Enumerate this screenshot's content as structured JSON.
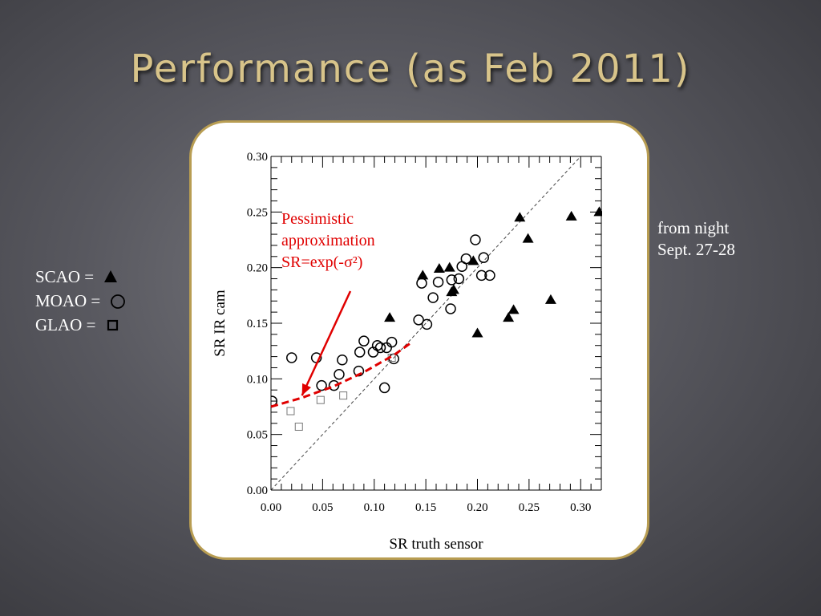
{
  "title": "Performance (as Feb 2011)",
  "side_note": {
    "line1": "from night",
    "line2": "Sept. 27-28"
  },
  "legend": {
    "scao": "SCAO = ",
    "moao": "MOAO = ",
    "glao": "GLAO = "
  },
  "colors": {
    "title": "#d8c48a",
    "annotation": "#e00000",
    "panel_border": "#b89d52"
  },
  "chart_data": {
    "type": "scatter",
    "xlabel": "SR truth sensor",
    "ylabel": "SR IR cam",
    "xlim": [
      0,
      0.32
    ],
    "ylim": [
      0,
      0.3
    ],
    "x_ticks": [
      "0.00",
      "0.05",
      "0.10",
      "0.15",
      "0.20",
      "0.25",
      "0.30"
    ],
    "y_ticks": [
      "0.00",
      "0.05",
      "0.10",
      "0.15",
      "0.20",
      "0.25",
      "0.30"
    ],
    "grid": false,
    "reference_line": "y = x",
    "annotation": {
      "lines": [
        "Pessimistic",
        "approximation",
        "SR=exp(-σ²)"
      ]
    },
    "approximation_curve": {
      "x": [
        0.0,
        0.03,
        0.06,
        0.09,
        0.12,
        0.135
      ],
      "y": [
        0.075,
        0.083,
        0.093,
        0.106,
        0.122,
        0.132
      ]
    },
    "series": [
      {
        "name": "SCAO",
        "marker": "triangle",
        "x": [
          0.115,
          0.147,
          0.163,
          0.173,
          0.175,
          0.177,
          0.196,
          0.2,
          0.23,
          0.235,
          0.241,
          0.249,
          0.271,
          0.291,
          0.318
        ],
        "y": [
          0.155,
          0.193,
          0.199,
          0.2,
          0.178,
          0.18,
          0.206,
          0.141,
          0.155,
          0.162,
          0.245,
          0.226,
          0.171,
          0.246,
          0.25
        ]
      },
      {
        "name": "MOAO",
        "marker": "circle",
        "x": [
          0.001,
          0.02,
          0.044,
          0.049,
          0.061,
          0.066,
          0.069,
          0.085,
          0.086,
          0.09,
          0.099,
          0.103,
          0.106,
          0.11,
          0.112,
          0.117,
          0.119,
          0.143,
          0.146,
          0.151,
          0.157,
          0.162,
          0.174,
          0.175,
          0.182,
          0.185,
          0.189,
          0.198,
          0.204,
          0.206,
          0.212
        ],
        "y": [
          0.08,
          0.119,
          0.119,
          0.094,
          0.094,
          0.104,
          0.117,
          0.107,
          0.124,
          0.134,
          0.124,
          0.13,
          0.128,
          0.092,
          0.128,
          0.133,
          0.118,
          0.153,
          0.186,
          0.149,
          0.173,
          0.187,
          0.163,
          0.189,
          0.19,
          0.201,
          0.208,
          0.225,
          0.193,
          0.209,
          0.193
        ]
      },
      {
        "name": "GLAO",
        "marker": "square",
        "x": [
          0.019,
          0.027,
          0.048,
          0.07,
          0.117
        ],
        "y": [
          0.071,
          0.057,
          0.081,
          0.085,
          0.119
        ]
      }
    ]
  }
}
